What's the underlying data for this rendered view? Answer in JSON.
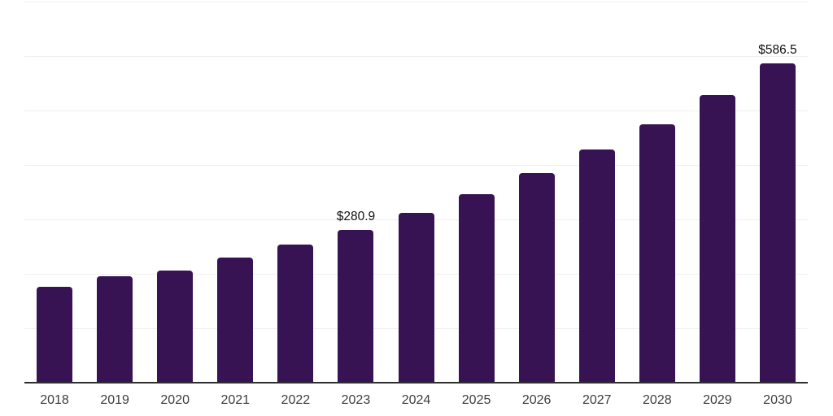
{
  "chart": {
    "background_color": "#ffffff",
    "bar_color": "#371353",
    "grid_color": "#efefef",
    "axis_line_color": "#2e2e2e",
    "tick_label_color": "#3d3d3d",
    "data_label_color": "#111111"
  },
  "chart_data": {
    "type": "bar",
    "title": "",
    "xlabel": "",
    "ylabel": "",
    "categories": [
      "2018",
      "2019",
      "2020",
      "2021",
      "2022",
      "2023",
      "2024",
      "2025",
      "2026",
      "2027",
      "2028",
      "2029",
      "2030"
    ],
    "values": [
      176.0,
      195.5,
      206.1,
      229.8,
      253.7,
      280.9,
      312.1,
      346.7,
      385.2,
      428.0,
      475.4,
      528.2,
      586.5
    ],
    "data_labels": [
      null,
      null,
      null,
      null,
      null,
      "$280.9",
      null,
      null,
      null,
      null,
      null,
      null,
      "$586.5"
    ],
    "ylim": [
      0,
      700
    ],
    "grid_interval": 100,
    "grid": true,
    "legend": false,
    "y_axis_tick_labels_visible": false
  }
}
